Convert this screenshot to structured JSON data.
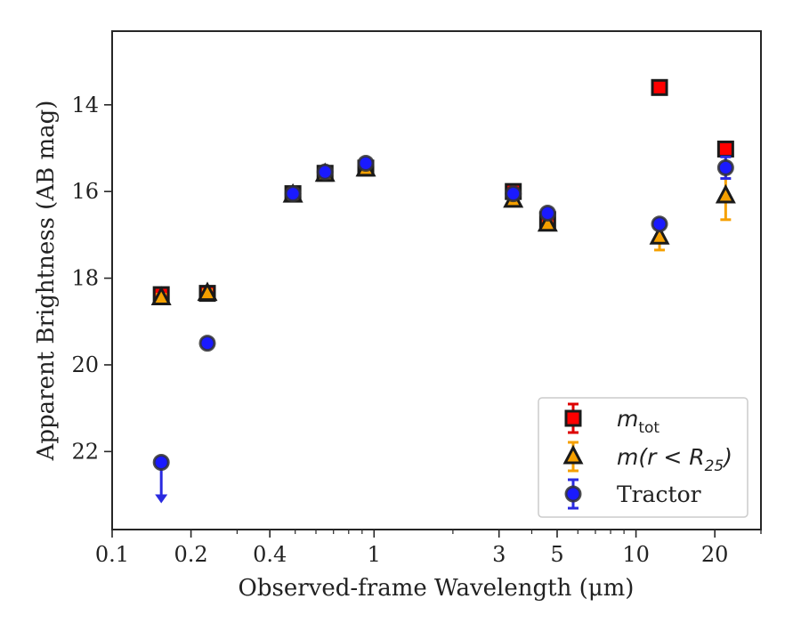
{
  "chart_data": {
    "type": "scatter",
    "xlabel": "Observed-frame Wavelength (μm)",
    "ylabel": "Apparent Brightness (AB mag)",
    "xscale": "log",
    "xlim": [
      0.1,
      30
    ],
    "ylim": [
      23.8,
      12.3
    ],
    "y_inverted": true,
    "x_tick_labels": [
      "0.1",
      "0.2",
      "0.4",
      "1",
      "3",
      "5",
      "10",
      "20"
    ],
    "x_ticks": [
      0.1,
      0.2,
      0.4,
      1,
      3,
      5,
      10,
      20
    ],
    "y_ticks": [
      14,
      16,
      18,
      20,
      22
    ],
    "y_tick_labels": [
      "14",
      "16",
      "18",
      "20",
      "22"
    ],
    "legend_placement": "lower-right",
    "legend": [
      {
        "label_base": "m",
        "label_sub": "tot"
      },
      {
        "label_base": "m(r < R",
        "label_sub": "25",
        "label_end": ")"
      },
      {
        "label_base": "Tractor"
      }
    ],
    "series": [
      {
        "name": "m_tot",
        "marker": "square",
        "color": "#ff0000",
        "errcolor": "#dd0000",
        "x": [
          0.154,
          0.231,
          0.49,
          0.65,
          0.93,
          3.4,
          4.6,
          12.3,
          22.0
        ],
        "y": [
          18.38,
          18.35,
          16.05,
          15.58,
          15.46,
          16.0,
          16.65,
          13.6,
          15.02
        ],
        "yerr": [
          0.12,
          0.1,
          0.03,
          0.03,
          0.03,
          0.03,
          0.04,
          0.05,
          0.08
        ]
      },
      {
        "name": "m(r<R25)",
        "marker": "triangle",
        "color": "#f5a000",
        "errcolor": "#f5a000",
        "x": [
          0.154,
          0.231,
          0.49,
          0.65,
          0.93,
          3.4,
          4.6,
          12.3,
          22.0
        ],
        "y": [
          18.45,
          18.35,
          16.08,
          15.6,
          15.48,
          16.2,
          16.75,
          17.05,
          16.1
        ],
        "yerr": [
          0.08,
          0.08,
          0.03,
          0.03,
          0.03,
          0.03,
          0.04,
          0.3,
          0.55
        ]
      },
      {
        "name": "Tractor",
        "marker": "circle",
        "color": "#1a1aff",
        "errcolor": "#2a2ae0",
        "x": [
          0.154,
          0.231,
          0.49,
          0.65,
          0.93,
          3.4,
          4.6,
          12.3,
          22.0
        ],
        "y": [
          22.25,
          19.5,
          16.05,
          15.55,
          15.35,
          16.05,
          16.5,
          16.75,
          15.45
        ],
        "yerr": [
          0,
          0.05,
          0.03,
          0.03,
          0.03,
          0.03,
          0.04,
          0.08,
          0.25
        ],
        "upper_limit": [
          true,
          false,
          false,
          false,
          false,
          false,
          false,
          false,
          false
        ]
      }
    ]
  }
}
